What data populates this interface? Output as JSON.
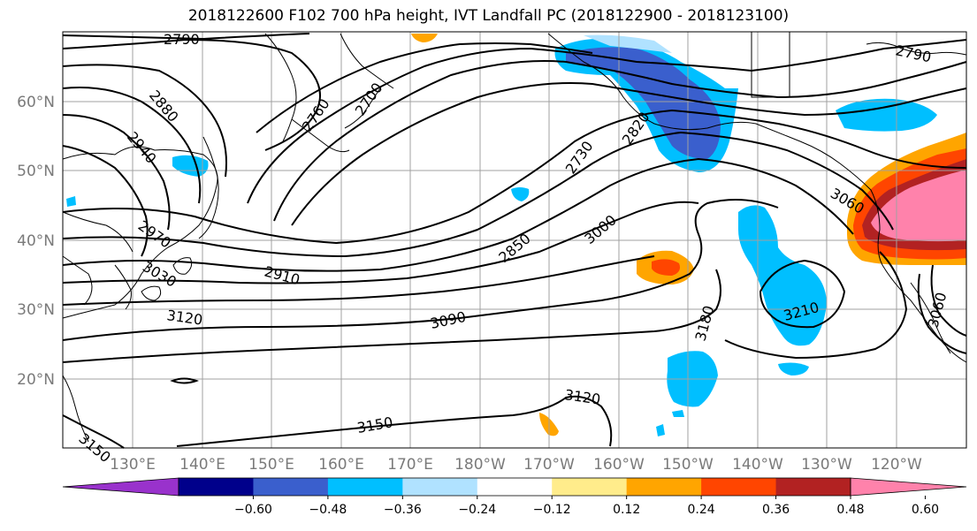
{
  "title": "2018122600 F102 700 hPa height, IVT Landfall PC (2018122900 - 2018123100)",
  "lat_labels": [
    "60°N",
    "50°N",
    "40°N",
    "30°N",
    "20°N"
  ],
  "lon_labels": [
    "130°E",
    "140°E",
    "150°E",
    "160°E",
    "170°E",
    "180°W",
    "170°W",
    "160°W",
    "150°W",
    "140°W",
    "130°W",
    "120°W"
  ],
  "contour_labels": [
    "2790",
    "2790",
    "2880",
    "2940",
    "2760",
    "2700",
    "2730",
    "2820",
    "3060",
    "2970",
    "3030",
    "2910",
    "2850",
    "3000",
    "3120",
    "3090",
    "3180",
    "3210",
    "3060",
    "3120",
    "3150",
    "3150"
  ],
  "colorbar": {
    "colors": [
      "#9932cc",
      "#00008b",
      "#3a5fcd",
      "#00bfff",
      "#b0e2ff",
      "#ffffff",
      "#ffec8b",
      "#ffa500",
      "#ff4500",
      "#b22222",
      "#ff82ab"
    ],
    "tick_labels": [
      "−0.60",
      "−0.48",
      "−0.36",
      "−0.24",
      "−0.12",
      "0.12",
      "0.24",
      "0.36",
      "0.48",
      "0.60"
    ]
  },
  "colors": {
    "contour": "#000000",
    "grid": "#a0a0a0",
    "coast": "#000000"
  }
}
